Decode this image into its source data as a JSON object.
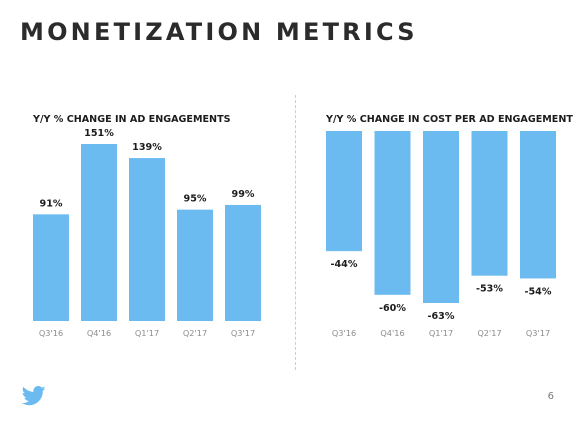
{
  "page": {
    "title": "MONETIZATION METRICS",
    "page_number": "6",
    "logo_icon": "twitter-bird-icon",
    "colors": {
      "bar": "#6bbbf0",
      "title": "#2b2b2b",
      "divider": "#c7cdd4"
    }
  },
  "chart_data": [
    {
      "type": "bar",
      "title": "Y/Y % CHANGE IN AD ENGAGEMENTS",
      "categories": [
        "Q3'16",
        "Q4'16",
        "Q1'17",
        "Q2'17",
        "Q3'17"
      ],
      "values": [
        91,
        151,
        139,
        95,
        99
      ],
      "labels": [
        "91%",
        "151%",
        "139%",
        "95%",
        "99%"
      ],
      "ylim": [
        0,
        151
      ],
      "grid": false
    },
    {
      "type": "bar",
      "title": "Y/Y % CHANGE IN COST PER AD ENGAGEMENT",
      "categories": [
        "Q3'16",
        "Q4'16",
        "Q1'17",
        "Q2'17",
        "Q3'17"
      ],
      "values": [
        -44,
        -60,
        -63,
        -53,
        -54
      ],
      "labels": [
        "-44%",
        "-60%",
        "-63%",
        "-53%",
        "-54%"
      ],
      "ylim": [
        -63,
        0
      ],
      "grid": false
    }
  ]
}
